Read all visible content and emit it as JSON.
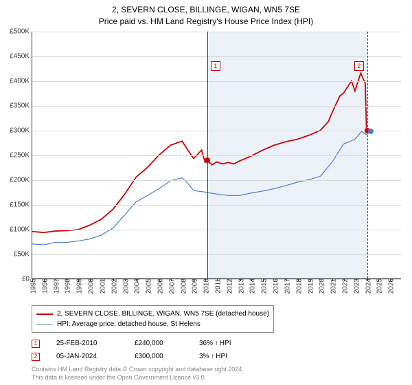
{
  "title_line1": "2, SEVERN CLOSE, BILLINGE, WIGAN, WN5 7SE",
  "title_line2": "Price paid vs. HM Land Registry's House Price Index (HPI)",
  "chart": {
    "type": "line",
    "x_start_year": 1995,
    "x_end_year": 2027,
    "ylim_min": 0,
    "ylim_max": 500000,
    "y_ticks": [
      0,
      50000,
      100000,
      150000,
      200000,
      250000,
      300000,
      350000,
      400000,
      450000,
      500000
    ],
    "y_tick_labels": [
      "£0",
      "£50K",
      "£100K",
      "£150K",
      "£200K",
      "£250K",
      "£300K",
      "£350K",
      "£400K",
      "£450K",
      "£500K"
    ],
    "x_ticks": [
      1995,
      1996,
      1997,
      1998,
      1999,
      2000,
      2001,
      2002,
      2003,
      2004,
      2005,
      2006,
      2007,
      2008,
      2009,
      2010,
      2011,
      2012,
      2013,
      2014,
      2015,
      2016,
      2017,
      2018,
      2019,
      2020,
      2021,
      2022,
      2023,
      2024,
      2025,
      2026
    ],
    "shade_start": 2010.15,
    "shade_end": 2024.02,
    "background_color": "#ffffff",
    "grid_color": "#d8d8d8",
    "series": {
      "property": {
        "color": "#cc0000",
        "width": 1.8,
        "label": "2, SEVERN CLOSE, BILLINGE, WIGAN, WN5 7SE (detached house)",
        "points": [
          [
            1995,
            95000
          ],
          [
            1996,
            93000
          ],
          [
            1997,
            96000
          ],
          [
            1998,
            97000
          ],
          [
            1999,
            99000
          ],
          [
            2000,
            108000
          ],
          [
            2001,
            120000
          ],
          [
            2002,
            140000
          ],
          [
            2003,
            170000
          ],
          [
            2004,
            205000
          ],
          [
            2005,
            225000
          ],
          [
            2006,
            250000
          ],
          [
            2007,
            270000
          ],
          [
            2008,
            278000
          ],
          [
            2008.5,
            260000
          ],
          [
            2009,
            243000
          ],
          [
            2009.7,
            260000
          ],
          [
            2010,
            235000
          ],
          [
            2010.15,
            240000
          ],
          [
            2010.6,
            230000
          ],
          [
            2011,
            236000
          ],
          [
            2011.5,
            232000
          ],
          [
            2012,
            235000
          ],
          [
            2012.5,
            232000
          ],
          [
            2013,
            238000
          ],
          [
            2014,
            248000
          ],
          [
            2015,
            260000
          ],
          [
            2016,
            270000
          ],
          [
            2017,
            277000
          ],
          [
            2018,
            282000
          ],
          [
            2019,
            290000
          ],
          [
            2020,
            300000
          ],
          [
            2020.7,
            318000
          ],
          [
            2021,
            335000
          ],
          [
            2021.7,
            370000
          ],
          [
            2022,
            375000
          ],
          [
            2022.7,
            400000
          ],
          [
            2023,
            380000
          ],
          [
            2023.5,
            416000
          ],
          [
            2023.9,
            395000
          ],
          [
            2024.0,
            300000
          ],
          [
            2024.02,
            300000
          ]
        ]
      },
      "hpi": {
        "color": "#4a7ec8",
        "width": 1.2,
        "label": "HPI: Average price, detached house, St Helens",
        "points": [
          [
            1995,
            70000
          ],
          [
            1996,
            68000
          ],
          [
            1997,
            73000
          ],
          [
            1998,
            73000
          ],
          [
            1999,
            76000
          ],
          [
            2000,
            80000
          ],
          [
            2001,
            88000
          ],
          [
            2002,
            102000
          ],
          [
            2003,
            128000
          ],
          [
            2004,
            155000
          ],
          [
            2005,
            168000
          ],
          [
            2006,
            182000
          ],
          [
            2007,
            198000
          ],
          [
            2008,
            204000
          ],
          [
            2008.6,
            190000
          ],
          [
            2009,
            178000
          ],
          [
            2010,
            175000
          ],
          [
            2011,
            171000
          ],
          [
            2012,
            168000
          ],
          [
            2013,
            168000
          ],
          [
            2014,
            173000
          ],
          [
            2015,
            177000
          ],
          [
            2016,
            182000
          ],
          [
            2017,
            188000
          ],
          [
            2018,
            195000
          ],
          [
            2019,
            200000
          ],
          [
            2020,
            207000
          ],
          [
            2021,
            235000
          ],
          [
            2022,
            272000
          ],
          [
            2023,
            282000
          ],
          [
            2023.6,
            298000
          ],
          [
            2024,
            291000
          ],
          [
            2024.3,
            298000
          ]
        ]
      }
    },
    "sales_markers": [
      {
        "n": "1",
        "year": 2010.15,
        "value": 240000,
        "badge_y": 430000
      },
      {
        "n": "2",
        "year": 2024.02,
        "value": 300000,
        "badge_y": 430000,
        "dashed": true
      }
    ],
    "terminal_blue_dot": {
      "year": 2024.3,
      "value": 298000
    }
  },
  "legend_sales": [
    {
      "n": "1",
      "date": "25-FEB-2010",
      "price": "£240,000",
      "delta": "36%",
      "delta_label": "HPI"
    },
    {
      "n": "2",
      "date": "05-JAN-2024",
      "price": "£300,000",
      "delta": "3%",
      "delta_label": "HPI"
    }
  ],
  "footer_line1": "Contains HM Land Registry data © Crown copyright and database right 2024.",
  "footer_line2": "This data is licensed under the Open Government Licence v3.0."
}
